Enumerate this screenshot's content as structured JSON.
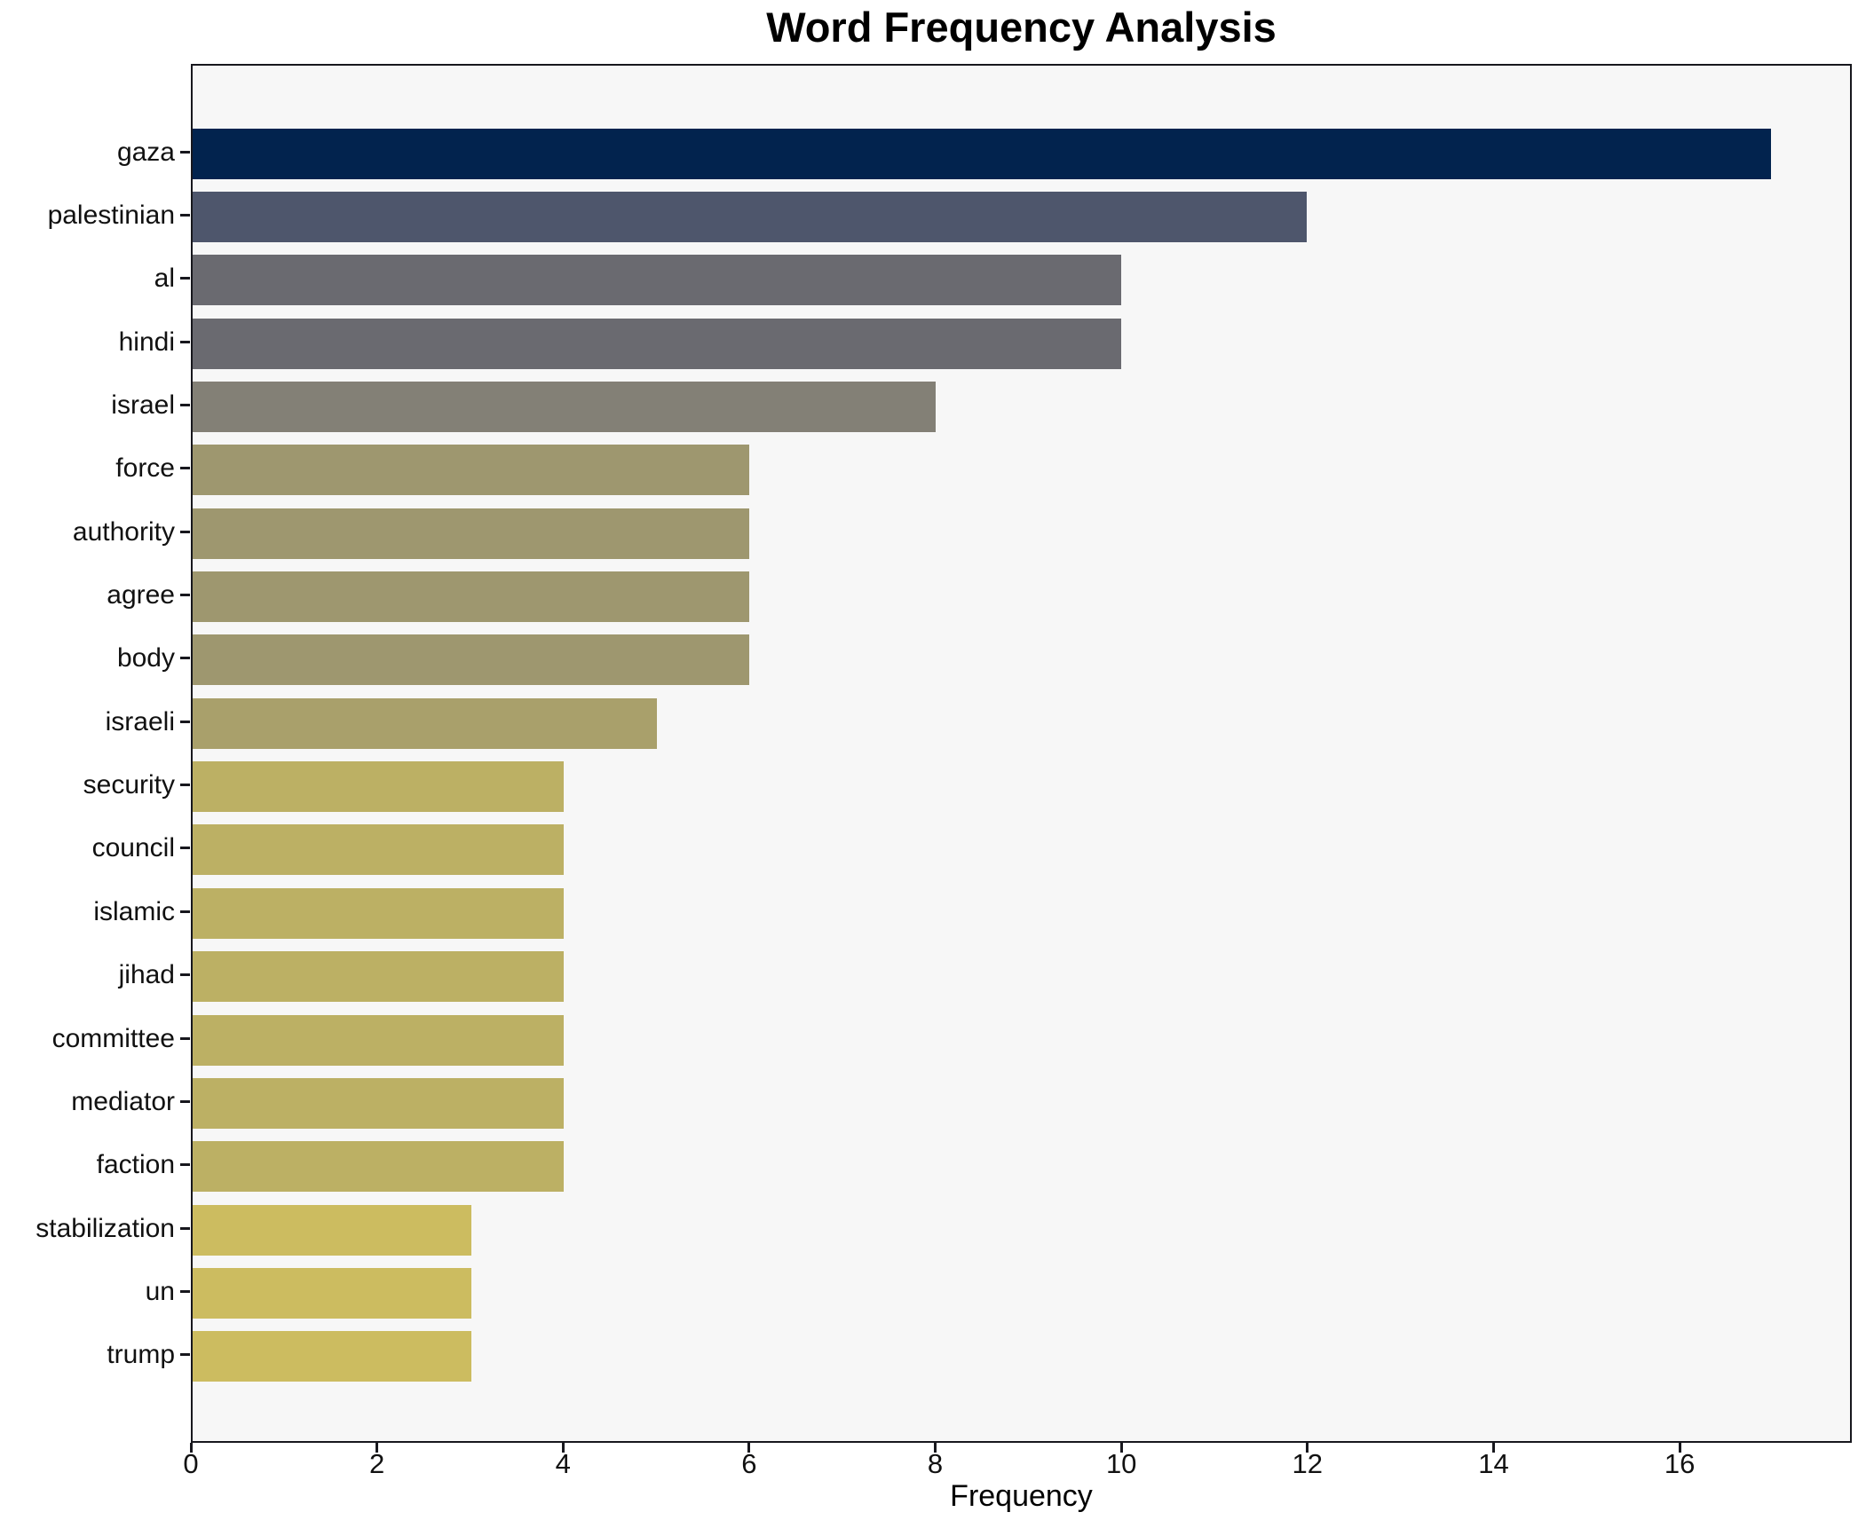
{
  "chart_data": {
    "type": "bar",
    "orientation": "horizontal",
    "title": "Word Frequency Analysis",
    "xlabel": "Frequency",
    "ylabel": "",
    "categories": [
      "gaza",
      "palestinian",
      "al",
      "hindi",
      "israel",
      "force",
      "authority",
      "agree",
      "body",
      "israeli",
      "security",
      "council",
      "islamic",
      "jihad",
      "committee",
      "mediator",
      "faction",
      "stabilization",
      "un",
      "trump"
    ],
    "values": [
      17,
      12,
      10,
      10,
      8,
      6,
      6,
      6,
      6,
      5,
      4,
      4,
      4,
      4,
      4,
      4,
      4,
      3,
      3,
      3
    ],
    "bar_colors": [
      "#02234e",
      "#4e566c",
      "#6a6a70",
      "#6a6a70",
      "#838076",
      "#9e976f",
      "#9e976f",
      "#9e976f",
      "#9e976f",
      "#a9a06b",
      "#bcb064",
      "#bcb064",
      "#bcb064",
      "#bcb064",
      "#bcb064",
      "#bcb064",
      "#bcb064",
      "#ccbc60",
      "#ccbc60",
      "#ccbc60"
    ],
    "xlim": [
      0,
      17.85
    ],
    "xticks": [
      0,
      2,
      4,
      6,
      8,
      10,
      12,
      14,
      16
    ],
    "grid": false,
    "legend": null,
    "plot_background": "#f7f7f7",
    "figure_background": "#ffffff",
    "spine_color": "#17171d",
    "text_color": "#111111"
  }
}
